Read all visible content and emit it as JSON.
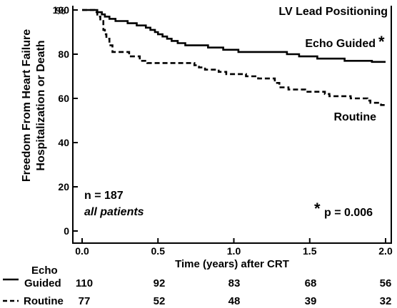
{
  "chart_data": {
    "type": "line",
    "title": "LV Lead Positioning",
    "xlabel": "Time (years) after CRT",
    "ylabel": "Freedom From Heart Failure Hospitalization or Death",
    "ylabel_line1": "Freedom From Heart Failure",
    "ylabel_line2": "Hospitalization or Death",
    "y_unit": "%",
    "xlim": [
      0,
      2
    ],
    "ylim": [
      0,
      100
    ],
    "x_ticks": [
      "0.0",
      "0.5",
      "1.0",
      "1.5",
      "2.0"
    ],
    "x_tick_values": [
      0,
      0.5,
      1.0,
      1.5,
      2.0
    ],
    "y_ticks": [
      "0",
      "20",
      "40",
      "60",
      "80",
      "100"
    ],
    "y_tick_values": [
      0,
      20,
      40,
      60,
      80,
      100
    ],
    "grid": false,
    "series": [
      {
        "name": "Echo Guided",
        "label_marker": "*",
        "style": "solid",
        "color": "#000000",
        "steps": [
          [
            0,
            100
          ],
          [
            0.09,
            100
          ],
          [
            0.1,
            99
          ],
          [
            0.13,
            98
          ],
          [
            0.15,
            97
          ],
          [
            0.18,
            96
          ],
          [
            0.22,
            95
          ],
          [
            0.3,
            94
          ],
          [
            0.36,
            93
          ],
          [
            0.42,
            92
          ],
          [
            0.45,
            91
          ],
          [
            0.48,
            90
          ],
          [
            0.5,
            89
          ],
          [
            0.53,
            88
          ],
          [
            0.56,
            87
          ],
          [
            0.59,
            86
          ],
          [
            0.63,
            85
          ],
          [
            0.68,
            84
          ],
          [
            0.83,
            83
          ],
          [
            0.93,
            82
          ],
          [
            1.03,
            81
          ],
          [
            1.35,
            80
          ],
          [
            1.43,
            79
          ],
          [
            1.55,
            78
          ],
          [
            1.73,
            77
          ],
          [
            1.91,
            76.5
          ],
          [
            2.0,
            76.5
          ]
        ],
        "at_risk": [
          110,
          92,
          83,
          68,
          56
        ]
      },
      {
        "name": "Routine",
        "style": "dashed",
        "color": "#000000",
        "steps": [
          [
            0,
            100
          ],
          [
            0.07,
            100
          ],
          [
            0.08,
            99
          ],
          [
            0.1,
            97
          ],
          [
            0.12,
            95
          ],
          [
            0.14,
            91
          ],
          [
            0.15,
            89
          ],
          [
            0.16,
            87
          ],
          [
            0.18,
            84
          ],
          [
            0.2,
            81
          ],
          [
            0.31,
            79
          ],
          [
            0.38,
            77
          ],
          [
            0.43,
            76
          ],
          [
            0.74,
            75
          ],
          [
            0.77,
            74
          ],
          [
            0.81,
            73
          ],
          [
            0.9,
            72
          ],
          [
            0.95,
            71
          ],
          [
            1.08,
            70
          ],
          [
            1.16,
            69
          ],
          [
            1.27,
            67
          ],
          [
            1.3,
            65
          ],
          [
            1.36,
            64
          ],
          [
            1.47,
            63
          ],
          [
            1.6,
            62
          ],
          [
            1.63,
            61
          ],
          [
            1.77,
            60
          ],
          [
            1.88,
            59
          ],
          [
            1.9,
            58
          ],
          [
            1.97,
            57
          ],
          [
            2.0,
            56.5
          ]
        ],
        "at_risk": [
          77,
          52,
          48,
          39,
          32
        ]
      }
    ],
    "annotations": {
      "n_label": "n = 187",
      "subgroup": "all patients",
      "p_marker": "*",
      "p_value": "p = 0.006"
    },
    "at_risk_table": {
      "rows": [
        {
          "label_line1": "Echo",
          "label_line2": "Guided",
          "style": "solid",
          "values": [
            "110",
            "92",
            "83",
            "68",
            "56"
          ]
        },
        {
          "label_line1": "Routine",
          "label_line2": "",
          "style": "dashed",
          "values": [
            "77",
            "52",
            "48",
            "39",
            "32"
          ]
        }
      ]
    }
  }
}
